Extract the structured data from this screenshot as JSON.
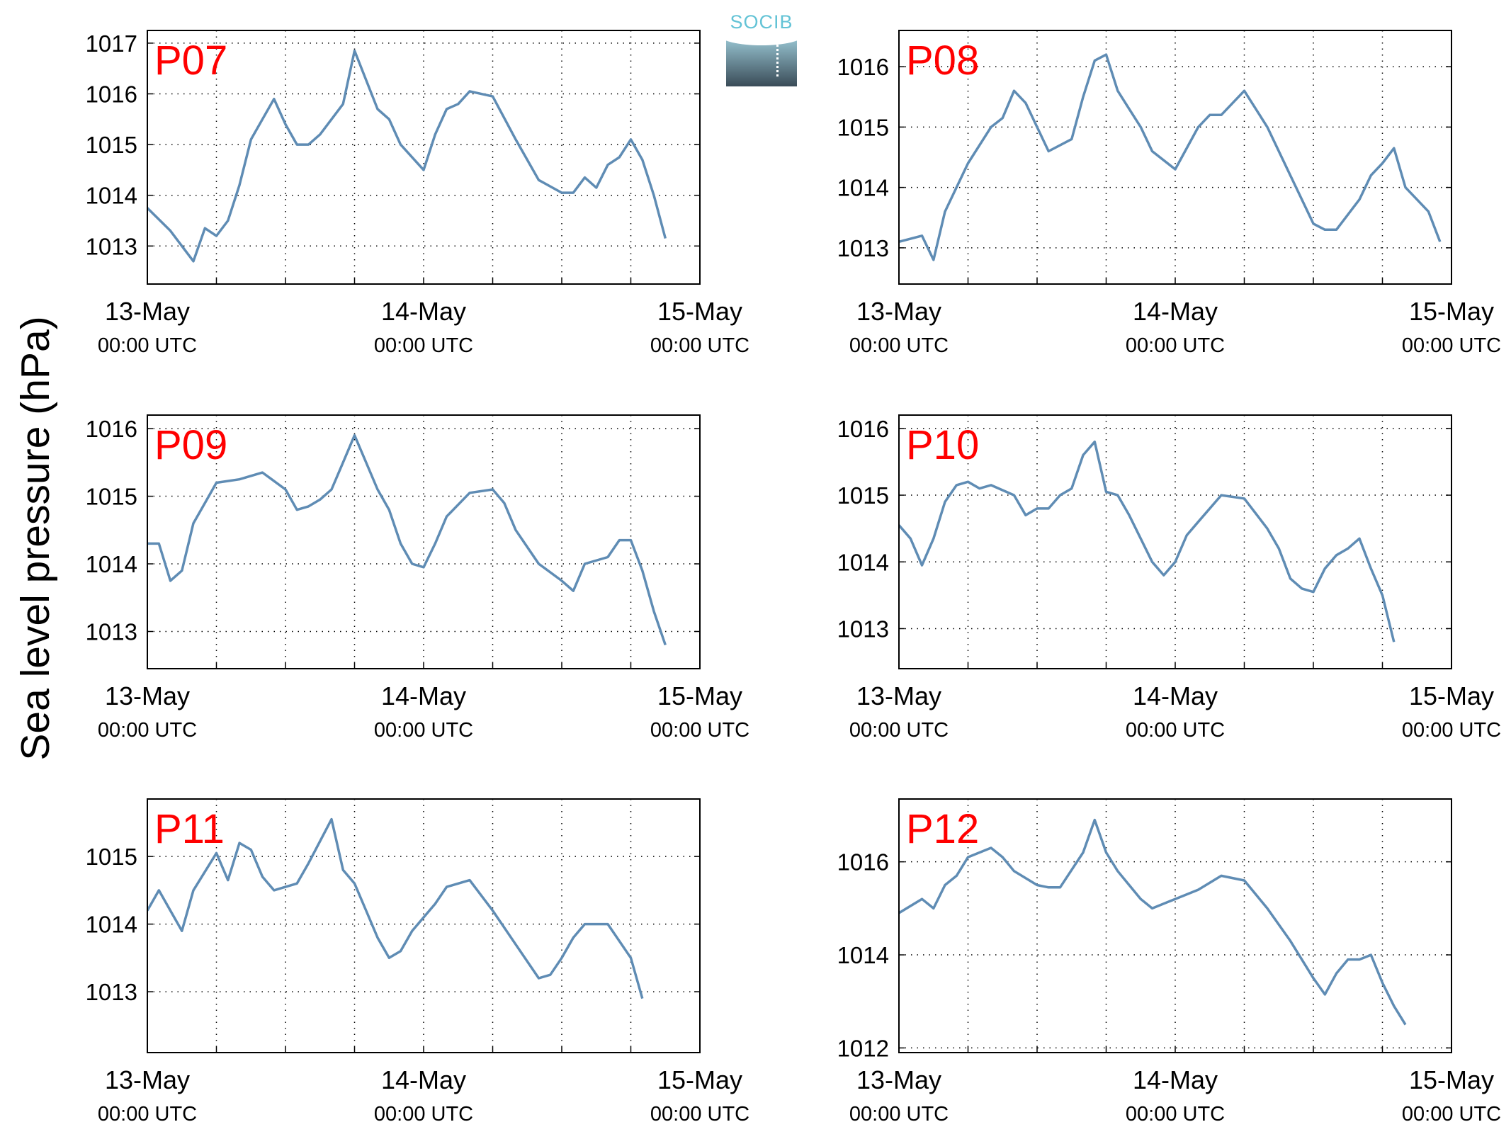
{
  "figure": {
    "ylabel": "Sea level pressure (hPa)",
    "logo_text": "SOCIB"
  },
  "colors": {
    "line": "#5f8cb4",
    "title": "#ff0000",
    "logo_text": "#63c3d6"
  },
  "chart_data": [
    {
      "type": "line",
      "title": "P07",
      "ylim": [
        1012.25,
        1017.25
      ],
      "yticks": [
        1013,
        1014,
        1015,
        1016,
        1017
      ],
      "xlim": [
        "2013-05-13 00:00",
        "2013-05-15 00:00"
      ],
      "xtick_labels": [
        {
          "date": "13-May",
          "time": "00:00 UTC"
        },
        {
          "date": "14-May",
          "time": "00:00 UTC"
        },
        {
          "date": "15-May",
          "time": "00:00 UTC"
        }
      ],
      "grid": true,
      "x_hours": [
        0,
        2,
        4,
        5,
        6,
        7,
        8,
        9,
        10,
        11,
        12,
        13,
        14,
        15,
        17,
        18,
        20,
        21,
        22,
        24,
        25,
        26,
        27,
        28,
        30,
        32,
        34,
        36,
        37,
        38,
        39,
        40,
        41,
        42,
        43,
        44,
        45,
        46,
        47,
        48
      ],
      "values": [
        1013.75,
        1013.3,
        1012.7,
        1013.35,
        1013.2,
        1013.5,
        1014.2,
        1015.1,
        1015.5,
        1015.9,
        1015.4,
        1015.0,
        1015.0,
        1015.2,
        1015.8,
        1016.85,
        1015.7,
        1015.5,
        1015.0,
        1014.5,
        1015.2,
        1015.7,
        1015.8,
        1016.05,
        1015.95,
        1015.1,
        1014.3,
        1014.05,
        1014.05,
        1014.35,
        1014.15,
        1014.6,
        1014.75,
        1015.1,
        1014.7,
        1014.0,
        1013.15,
        null,
        null,
        null
      ]
    },
    {
      "type": "line",
      "title": "P08",
      "ylim": [
        1012.4,
        1016.6
      ],
      "yticks": [
        1013,
        1014,
        1015,
        1016
      ],
      "xlim": [
        "2013-05-13 00:00",
        "2013-05-15 00:00"
      ],
      "xtick_labels": [
        {
          "date": "13-May",
          "time": "00:00 UTC"
        },
        {
          "date": "14-May",
          "time": "00:00 UTC"
        },
        {
          "date": "15-May",
          "time": "00:00 UTC"
        }
      ],
      "grid": true,
      "x_hours": [
        0,
        2,
        3,
        4,
        6,
        8,
        9,
        10,
        11,
        12,
        13,
        15,
        16,
        17,
        18,
        19,
        20,
        21,
        22,
        24,
        26,
        27,
        28,
        30,
        32,
        34,
        35,
        36,
        37,
        38,
        40,
        41,
        42,
        43,
        44,
        46,
        47,
        48
      ],
      "values": [
        1013.1,
        1013.2,
        1012.8,
        1013.6,
        1014.4,
        1015.0,
        1015.15,
        1015.6,
        1015.4,
        1015.0,
        1014.6,
        1014.8,
        1015.5,
        1016.1,
        1016.2,
        1015.6,
        1015.3,
        1015.0,
        1014.6,
        1014.3,
        1015.0,
        1015.2,
        1015.2,
        1015.6,
        1015.0,
        1014.2,
        1013.8,
        1013.4,
        1013.3,
        1013.3,
        1013.8,
        1014.2,
        1014.4,
        1014.65,
        1014.0,
        1013.6,
        1013.1,
        null
      ]
    },
    {
      "type": "line",
      "title": "P09",
      "ylim": [
        1012.45,
        1016.2
      ],
      "yticks": [
        1013,
        1014,
        1015,
        1016
      ],
      "xlim": [
        "2013-05-13 00:00",
        "2013-05-15 00:00"
      ],
      "xtick_labels": [
        {
          "date": "13-May",
          "time": "00:00 UTC"
        },
        {
          "date": "14-May",
          "time": "00:00 UTC"
        },
        {
          "date": "15-May",
          "time": "00:00 UTC"
        }
      ],
      "grid": true,
      "x_hours": [
        0,
        1,
        2,
        3,
        4,
        5,
        6,
        8,
        10,
        12,
        13,
        14,
        15,
        16,
        17,
        18,
        19,
        20,
        21,
        22,
        23,
        24,
        25,
        26,
        28,
        30,
        31,
        32,
        34,
        36,
        37,
        38,
        40,
        41,
        42,
        43,
        44,
        45,
        46,
        47,
        48
      ],
      "values": [
        1014.3,
        1014.3,
        1013.75,
        1013.9,
        1014.6,
        1014.9,
        1015.2,
        1015.25,
        1015.35,
        1015.1,
        1014.8,
        1014.85,
        1014.95,
        1015.1,
        1015.5,
        1015.9,
        1015.5,
        1015.1,
        1014.8,
        1014.3,
        1014.0,
        1013.95,
        1014.3,
        1014.7,
        1015.05,
        1015.1,
        1014.9,
        1014.5,
        1014.0,
        1013.75,
        1013.6,
        1014.0,
        1014.1,
        1014.35,
        1014.35,
        1013.9,
        1013.3,
        1012.8,
        null,
        null,
        null
      ]
    },
    {
      "type": "line",
      "title": "P10",
      "ylim": [
        1012.4,
        1016.2
      ],
      "yticks": [
        1013,
        1014,
        1015,
        1016
      ],
      "xlim": [
        "2013-05-13 00:00",
        "2013-05-15 00:00"
      ],
      "xtick_labels": [
        {
          "date": "13-May",
          "time": "00:00 UTC"
        },
        {
          "date": "14-May",
          "time": "00:00 UTC"
        },
        {
          "date": "15-May",
          "time": "00:00 UTC"
        }
      ],
      "grid": true,
      "x_hours": [
        0,
        1,
        2,
        3,
        4,
        5,
        6,
        7,
        8,
        10,
        11,
        12,
        13,
        14,
        15,
        16,
        17,
        18,
        19,
        20,
        22,
        23,
        24,
        25,
        26,
        28,
        30,
        32,
        33,
        34,
        35,
        36,
        37,
        38,
        39,
        40,
        41,
        42,
        43,
        44,
        45,
        46,
        47,
        48
      ],
      "values": [
        1014.55,
        1014.35,
        1013.95,
        1014.35,
        1014.9,
        1015.15,
        1015.2,
        1015.1,
        1015.15,
        1015.0,
        1014.7,
        1014.8,
        1014.8,
        1015.0,
        1015.1,
        1015.6,
        1015.8,
        1015.05,
        1015.0,
        1014.7,
        1014.0,
        1013.8,
        1014.0,
        1014.4,
        1014.6,
        1015.0,
        1014.95,
        1014.5,
        1014.2,
        1013.75,
        1013.6,
        1013.55,
        1013.9,
        1014.1,
        1014.2,
        1014.35,
        1013.9,
        1013.5,
        1012.8,
        null,
        null,
        null,
        null,
        null
      ]
    },
    {
      "type": "line",
      "title": "P11",
      "ylim": [
        1012.1,
        1015.85
      ],
      "yticks": [
        1013,
        1014,
        1015
      ],
      "xlim": [
        "2013-05-13 00:00",
        "2013-05-15 00:00"
      ],
      "xtick_labels": [
        {
          "date": "13-May",
          "time": "00:00 UTC"
        },
        {
          "date": "14-May",
          "time": "00:00 UTC"
        },
        {
          "date": "15-May",
          "time": "00:00 UTC"
        }
      ],
      "grid": true,
      "x_hours": [
        0,
        1,
        2,
        3,
        4,
        6,
        7,
        8,
        9,
        10,
        11,
        12,
        13,
        14,
        16,
        17,
        18,
        19,
        20,
        21,
        22,
        23,
        24,
        25,
        26,
        27,
        28,
        30,
        32,
        34,
        35,
        36,
        37,
        38,
        40,
        42,
        43,
        44,
        45,
        46,
        47,
        48
      ],
      "values": [
        1014.2,
        1014.5,
        1014.2,
        1013.9,
        1014.5,
        1015.05,
        1014.65,
        1015.2,
        1015.1,
        1014.7,
        1014.5,
        1014.55,
        1014.6,
        1014.9,
        1015.55,
        1014.8,
        1014.6,
        1014.2,
        1013.8,
        1013.5,
        1013.6,
        1013.9,
        1014.1,
        1014.3,
        1014.55,
        1014.6,
        1014.65,
        1014.2,
        1013.7,
        1013.2,
        1013.25,
        1013.5,
        1013.8,
        1014.0,
        1014.0,
        1013.5,
        1012.9,
        null,
        null,
        null,
        null,
        null
      ]
    },
    {
      "type": "line",
      "title": "P12",
      "ylim": [
        1011.9,
        1017.35
      ],
      "yticks": [
        1012,
        1014,
        1016
      ],
      "xlim": [
        "2013-05-13 00:00",
        "2013-05-15 00:00"
      ],
      "xtick_labels": [
        {
          "date": "13-May",
          "time": "00:00 UTC"
        },
        {
          "date": "14-May",
          "time": "00:00 UTC"
        },
        {
          "date": "15-May",
          "time": "00:00 UTC"
        }
      ],
      "grid": true,
      "x_hours": [
        0,
        2,
        3,
        4,
        5,
        6,
        8,
        9,
        10,
        12,
        13,
        14,
        16,
        17,
        18,
        19,
        20,
        21,
        22,
        24,
        26,
        28,
        30,
        32,
        34,
        36,
        37,
        38,
        39,
        40,
        41,
        42,
        43,
        44,
        45,
        46,
        47,
        48
      ],
      "values": [
        1014.9,
        1015.2,
        1015.0,
        1015.5,
        1015.7,
        1016.1,
        1016.3,
        1016.1,
        1015.8,
        1015.5,
        1015.45,
        1015.45,
        1016.2,
        1016.9,
        1016.2,
        1015.8,
        1015.5,
        1015.2,
        1015.0,
        1015.2,
        1015.4,
        1015.7,
        1015.6,
        1015.0,
        1014.3,
        1013.5,
        1013.15,
        1013.6,
        1013.9,
        1013.9,
        1014.0,
        1013.4,
        1012.9,
        1012.5,
        null,
        null,
        null,
        null
      ]
    }
  ]
}
